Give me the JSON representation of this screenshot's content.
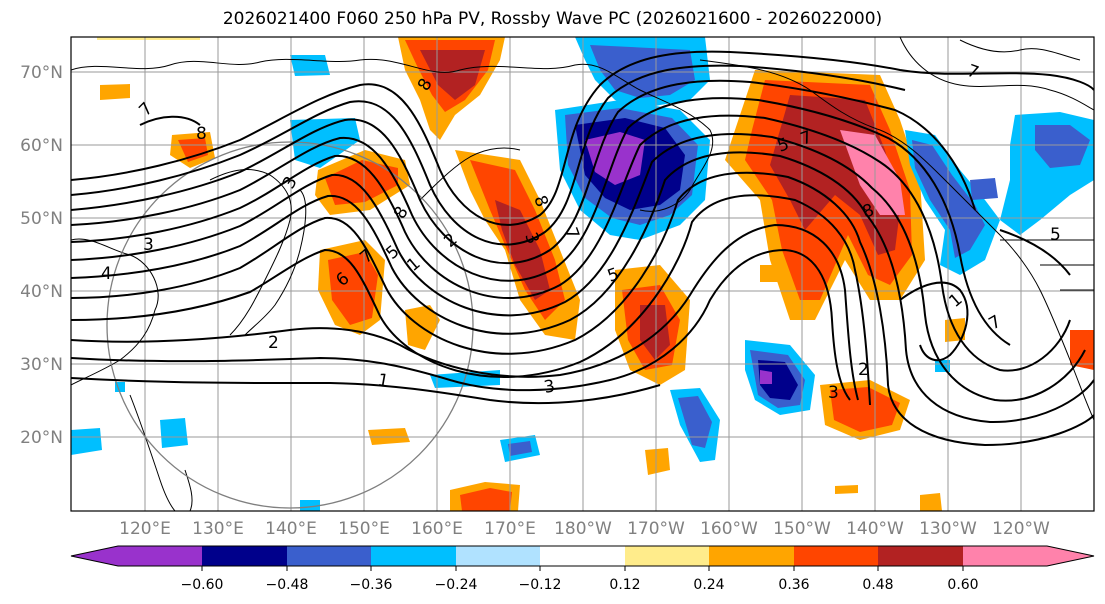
{
  "title": "2026021400 F060 250 hPa PV, Rossby Wave PC (2026021600 - 2026022000)",
  "lat_labels": [
    "70°N",
    "60°N",
    "50°N",
    "40°N",
    "30°N",
    "20°N"
  ],
  "lon_labels": [
    "120°E",
    "130°E",
    "140°E",
    "150°E",
    "160°E",
    "170°E",
    "180°W",
    "170°W",
    "160°W",
    "150°W",
    "140°W",
    "130°W",
    "120°W"
  ],
  "contour_labels": [
    "7",
    "8",
    "8",
    "7",
    "4",
    "3",
    "3",
    "2",
    "1",
    "1",
    "2",
    "3",
    "5",
    "6",
    "7",
    "8",
    "8",
    "7",
    "5",
    "3",
    "5",
    "7",
    "8",
    "2",
    "1",
    "3",
    "5",
    "7"
  ],
  "colorbar": {
    "tick_labels": [
      "−0.60",
      "−0.48",
      "−0.36",
      "−0.24",
      "−0.12",
      "0.12",
      "0.24",
      "0.36",
      "0.48",
      "0.60"
    ],
    "colors": [
      "#9932cc",
      "#00008b",
      "#3a5fcd",
      "#00bfff",
      "#b0e2ff",
      "#ffffff",
      "#ffec8b",
      "#ffa500",
      "#ff4500",
      "#b22222",
      "#ff82ab"
    ]
  }
}
